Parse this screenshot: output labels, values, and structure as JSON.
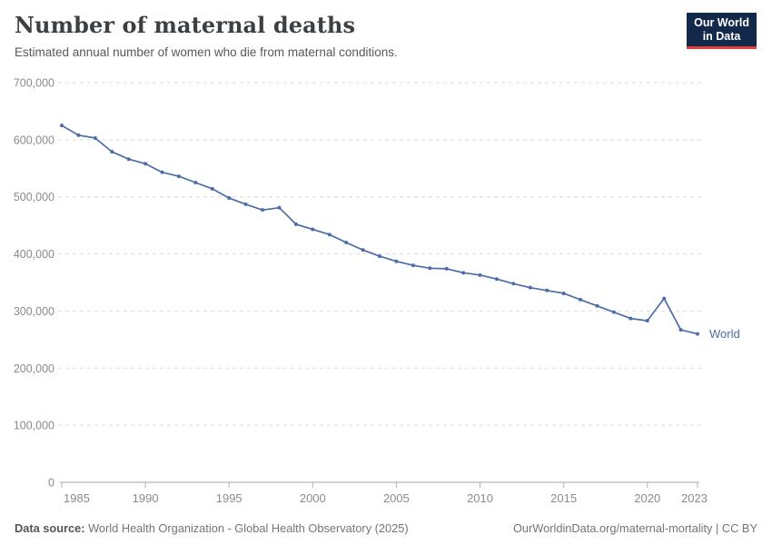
{
  "header": {
    "title": "Number of maternal deaths",
    "subtitle": "Estimated annual number of women who die from maternal conditions.",
    "logo": {
      "line1": "Our World",
      "line2": "in Data",
      "bg_color": "#12294b",
      "accent_color": "#e0403a"
    }
  },
  "chart_data": {
    "type": "line",
    "title": "Number of maternal deaths",
    "xlabel": "",
    "ylabel": "",
    "grid": "horizontal-dashed",
    "legend_position": "end-of-line",
    "ylim": [
      0,
      700000
    ],
    "yticks": [
      0,
      100000,
      200000,
      300000,
      400000,
      500000,
      600000,
      700000
    ],
    "ytick_labels": [
      "0",
      "100,000",
      "200,000",
      "300,000",
      "400,000",
      "500,000",
      "600,000",
      "700,000"
    ],
    "xticks": [
      1985,
      1990,
      1995,
      2000,
      2005,
      2010,
      2015,
      2020,
      2023
    ],
    "xtick_labels": [
      "1985",
      "1990",
      "1995",
      "2000",
      "2005",
      "2010",
      "2015",
      "2020",
      "2023"
    ],
    "x": [
      1985,
      1986,
      1987,
      1988,
      1989,
      1990,
      1991,
      1992,
      1993,
      1994,
      1995,
      1996,
      1997,
      1998,
      1999,
      2000,
      2001,
      2002,
      2003,
      2004,
      2005,
      2006,
      2007,
      2008,
      2009,
      2010,
      2011,
      2012,
      2013,
      2014,
      2015,
      2016,
      2017,
      2018,
      2019,
      2020,
      2021,
      2022,
      2023
    ],
    "series": [
      {
        "name": "World",
        "color": "#4c6cab",
        "values": [
          625000,
          608000,
          603000,
          579000,
          566000,
          558000,
          543000,
          536000,
          525000,
          514000,
          498000,
          487000,
          477000,
          481000,
          452000,
          443000,
          434000,
          420000,
          407000,
          396000,
          387000,
          380000,
          375000,
          374000,
          367000,
          363000,
          356000,
          348000,
          341000,
          336000,
          331000,
          320000,
          309000,
          298000,
          287000,
          283000,
          322000,
          267000,
          260000
        ]
      }
    ]
  },
  "footer": {
    "source_label": "Data source:",
    "source_text": " World Health Organization - Global Health Observatory (2025)",
    "link_text": "OurWorldinData.org/maternal-mortality | CC BY"
  }
}
